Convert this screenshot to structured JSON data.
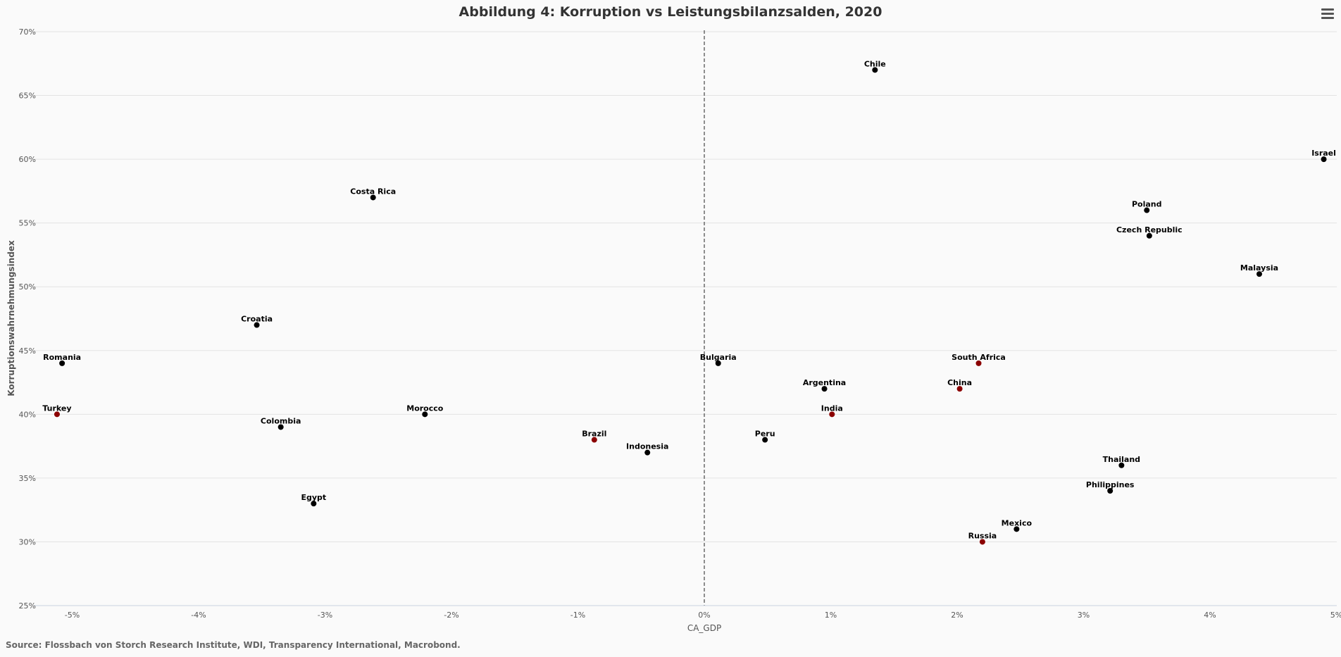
{
  "chart_data": {
    "type": "scatter",
    "title": "Abbildung 4: Korruption vs Leistungsbilanzsalden, 2020",
    "xlabel": "CA_GDP",
    "ylabel": "Korruptionswahrnehmungsindex",
    "xlim": [
      -5.5,
      5
    ],
    "ylim": [
      25,
      70
    ],
    "x_ticks": [
      -5,
      -4,
      -3,
      -2,
      -1,
      0,
      1,
      2,
      3,
      4,
      5
    ],
    "x_tick_labels": [
      "-5%",
      "-4%",
      "-3%",
      "-2%",
      "-1%",
      "0%",
      "1%",
      "2%",
      "3%",
      "4%",
      "5%"
    ],
    "y_ticks": [
      25,
      30,
      35,
      40,
      45,
      50,
      55,
      60,
      65,
      70
    ],
    "y_tick_labels": [
      "25%",
      "30%",
      "35%",
      "40%",
      "45%",
      "50%",
      "55%",
      "60%",
      "65%",
      "70%"
    ],
    "grid": "horizontal",
    "reference_line": {
      "x": 0,
      "style": "dashed"
    },
    "colors": {
      "default": "#000000",
      "highlight": "#8b0000"
    },
    "points": [
      {
        "label": "Chile",
        "x": 1.35,
        "y": 67,
        "color": "#000000"
      },
      {
        "label": "Israel",
        "x": 4.9,
        "y": 60,
        "color": "#000000"
      },
      {
        "label": "Costa Rica",
        "x": -2.62,
        "y": 57,
        "color": "#000000"
      },
      {
        "label": "Poland",
        "x": 3.5,
        "y": 56,
        "color": "#000000"
      },
      {
        "label": "Czech Republic",
        "x": 3.52,
        "y": 54,
        "color": "#000000"
      },
      {
        "label": "Malaysia",
        "x": 4.39,
        "y": 51,
        "color": "#000000"
      },
      {
        "label": "Croatia",
        "x": -3.54,
        "y": 47,
        "color": "#000000"
      },
      {
        "label": "Romania",
        "x": -5.08,
        "y": 44,
        "color": "#000000"
      },
      {
        "label": "Bulgaria",
        "x": 0.11,
        "y": 44,
        "color": "#000000"
      },
      {
        "label": "South Africa",
        "x": 2.17,
        "y": 44,
        "color": "#8b0000"
      },
      {
        "label": "Argentina",
        "x": 0.95,
        "y": 42,
        "color": "#000000"
      },
      {
        "label": "China",
        "x": 2.02,
        "y": 42,
        "color": "#8b0000"
      },
      {
        "label": "Turkey",
        "x": -5.12,
        "y": 40,
        "color": "#8b0000"
      },
      {
        "label": "Morocco",
        "x": -2.21,
        "y": 40,
        "color": "#000000"
      },
      {
        "label": "India",
        "x": 1.01,
        "y": 40,
        "color": "#8b0000"
      },
      {
        "label": "Colombia",
        "x": -3.35,
        "y": 39,
        "color": "#000000"
      },
      {
        "label": "Brazil",
        "x": -0.87,
        "y": 38,
        "color": "#8b0000"
      },
      {
        "label": "Peru",
        "x": 0.48,
        "y": 38,
        "color": "#000000"
      },
      {
        "label": "Indonesia",
        "x": -0.45,
        "y": 37,
        "color": "#000000"
      },
      {
        "label": "Thailand",
        "x": 3.3,
        "y": 36,
        "color": "#000000"
      },
      {
        "label": "Philippines",
        "x": 3.21,
        "y": 34,
        "color": "#000000"
      },
      {
        "label": "Egypt",
        "x": -3.09,
        "y": 33,
        "color": "#000000"
      },
      {
        "label": "Mexico",
        "x": 2.47,
        "y": 31,
        "color": "#000000"
      },
      {
        "label": "Russia",
        "x": 2.2,
        "y": 30,
        "color": "#8b0000"
      }
    ]
  },
  "footer": {
    "source": "Source: Flossbach von Storch Research Institute, WDI, Transparency International, Macrobond."
  }
}
